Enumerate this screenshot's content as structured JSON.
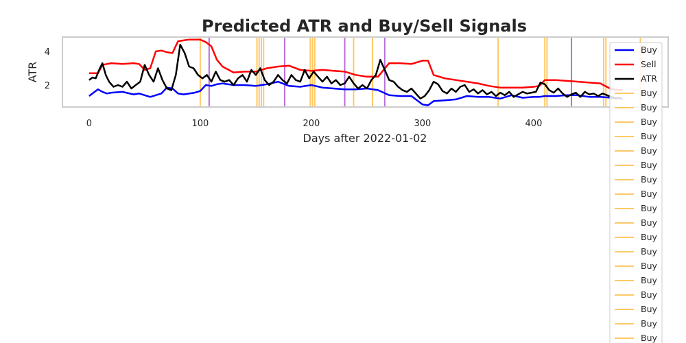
{
  "chart_data": {
    "type": "line",
    "title": "Predicted ATR and Buy/Sell Signals",
    "xlabel": "Days after 2022-01-02",
    "ylabel": "ATR",
    "xlim": [
      -24,
      521
    ],
    "ylim": [
      0.7,
      4.85
    ],
    "xticks": [
      0,
      100,
      200,
      300,
      400
    ],
    "yticks": [
      2,
      4
    ],
    "grid": false,
    "legend_position": "top-right",
    "series": [
      {
        "name": "Buy",
        "color": "#0000ff",
        "x": [
          0,
          8,
          12,
          16,
          20,
          30,
          40,
          45,
          50,
          55,
          60,
          65,
          70,
          75,
          80,
          85,
          95,
          100,
          105,
          110,
          115,
          120,
          130,
          140,
          150,
          160,
          170,
          180,
          190,
          200,
          210,
          220,
          230,
          240,
          250,
          260,
          270,
          280,
          290,
          300,
          305,
          310,
          320,
          330,
          340,
          350,
          360,
          370,
          380,
          390,
          400,
          405,
          410,
          420,
          430,
          440,
          450,
          460,
          470,
          480
        ],
        "y": [
          1.35,
          1.75,
          1.6,
          1.5,
          1.55,
          1.6,
          1.45,
          1.5,
          1.4,
          1.3,
          1.4,
          1.5,
          1.85,
          1.8,
          1.5,
          1.45,
          1.55,
          1.65,
          2.0,
          1.95,
          2.05,
          2.1,
          2.0,
          2.0,
          1.95,
          2.05,
          2.2,
          1.95,
          1.9,
          2.0,
          1.85,
          1.8,
          1.75,
          1.75,
          1.8,
          1.7,
          1.4,
          1.35,
          1.35,
          0.85,
          0.8,
          1.05,
          1.1,
          1.15,
          1.35,
          1.3,
          1.3,
          1.2,
          1.4,
          1.25,
          1.3,
          1.3,
          1.35,
          1.35,
          1.4,
          1.4,
          1.3,
          1.3,
          1.25,
          1.2
        ]
      },
      {
        "name": "Sell",
        "color": "#ff0000",
        "x": [
          0,
          8,
          12,
          16,
          20,
          30,
          40,
          45,
          50,
          55,
          60,
          65,
          70,
          75,
          80,
          85,
          90,
          95,
          100,
          105,
          110,
          115,
          120,
          130,
          140,
          150,
          160,
          170,
          180,
          190,
          200,
          210,
          220,
          230,
          240,
          250,
          260,
          270,
          280,
          290,
          300,
          305,
          310,
          320,
          330,
          340,
          350,
          360,
          370,
          380,
          390,
          400,
          405,
          410,
          420,
          430,
          440,
          450,
          460,
          470,
          480
        ],
        "y": [
          2.7,
          2.7,
          3.2,
          3.25,
          3.3,
          3.25,
          3.3,
          3.25,
          2.9,
          3.0,
          4.0,
          4.05,
          3.95,
          3.9,
          4.6,
          4.65,
          4.7,
          4.7,
          4.7,
          4.55,
          4.3,
          3.5,
          3.1,
          2.75,
          2.8,
          2.8,
          3.0,
          3.1,
          3.15,
          2.9,
          2.85,
          2.9,
          2.85,
          2.8,
          2.6,
          2.5,
          2.5,
          3.3,
          3.3,
          3.25,
          3.45,
          3.45,
          2.6,
          2.4,
          2.3,
          2.2,
          2.1,
          1.95,
          1.85,
          1.85,
          1.85,
          1.9,
          1.95,
          2.3,
          2.3,
          2.25,
          2.2,
          2.15,
          2.1,
          1.75,
          1.7
        ]
      },
      {
        "name": "ATR",
        "color": "#000000",
        "x": [
          0,
          3,
          6,
          9,
          12,
          15,
          18,
          22,
          26,
          30,
          34,
          38,
          42,
          46,
          50,
          54,
          58,
          62,
          66,
          70,
          74,
          78,
          82,
          86,
          90,
          94,
          98,
          102,
          106,
          110,
          114,
          118,
          122,
          126,
          130,
          134,
          138,
          142,
          146,
          150,
          154,
          158,
          162,
          166,
          170,
          174,
          178,
          182,
          186,
          190,
          194,
          198,
          202,
          206,
          210,
          214,
          218,
          222,
          226,
          230,
          234,
          238,
          242,
          246,
          250,
          254,
          258,
          262,
          266,
          270,
          274,
          278,
          282,
          286,
          290,
          294,
          298,
          302,
          306,
          310,
          314,
          318,
          322,
          326,
          330,
          334,
          338,
          342,
          346,
          350,
          354,
          358,
          362,
          366,
          370,
          374,
          378,
          382,
          386,
          390,
          394,
          398,
          402,
          406,
          410,
          414,
          418,
          422,
          426,
          430,
          434,
          438,
          442,
          446,
          450,
          454,
          458,
          462,
          466,
          470,
          474,
          478
        ],
        "y": [
          2.3,
          2.45,
          2.4,
          2.9,
          3.3,
          2.6,
          2.2,
          1.9,
          2.0,
          1.9,
          2.2,
          1.8,
          2.0,
          2.2,
          3.2,
          2.6,
          2.2,
          3.0,
          2.3,
          1.8,
          1.7,
          2.6,
          4.4,
          3.9,
          3.1,
          3.0,
          2.6,
          2.4,
          2.6,
          2.2,
          2.8,
          2.3,
          2.2,
          2.3,
          2.0,
          2.4,
          2.6,
          2.2,
          2.9,
          2.6,
          3.0,
          2.3,
          2.0,
          2.2,
          2.6,
          2.3,
          2.1,
          2.6,
          2.3,
          2.2,
          2.9,
          2.4,
          2.8,
          2.5,
          2.2,
          2.5,
          2.1,
          2.3,
          2.0,
          2.1,
          2.5,
          2.1,
          1.8,
          2.0,
          1.8,
          2.3,
          2.6,
          3.5,
          2.9,
          2.3,
          2.2,
          1.9,
          1.7,
          1.6,
          1.8,
          1.5,
          1.2,
          1.35,
          1.7,
          2.2,
          2.05,
          1.65,
          1.5,
          1.8,
          1.6,
          1.9,
          2.0,
          1.6,
          1.75,
          1.5,
          1.7,
          1.45,
          1.6,
          1.35,
          1.55,
          1.4,
          1.6,
          1.3,
          1.45,
          1.6,
          1.5,
          1.55,
          1.6,
          2.15,
          2.05,
          1.7,
          1.55,
          1.8,
          1.5,
          1.3,
          1.45,
          1.55,
          1.3,
          1.6,
          1.45,
          1.5,
          1.35,
          1.5,
          1.4,
          1.3,
          1.2,
          1.25
        ]
      }
    ],
    "signals": {
      "buy_color": "#ffa500",
      "sell_color": "#9932cc",
      "buy_x": [
        100,
        151,
        153,
        155,
        157,
        199,
        201,
        203,
        238,
        255,
        368,
        410,
        412,
        463,
        465,
        496
      ],
      "sell_x": [
        108,
        176,
        230,
        266,
        434
      ]
    },
    "legend": {
      "entries": [
        "Buy",
        "Sell",
        "ATR",
        "Buy",
        "Buy",
        "Buy",
        "Buy",
        "Buy",
        "Buy",
        "Buy",
        "Buy",
        "Buy",
        "Buy",
        "Buy",
        "Buy",
        "Buy",
        "Buy",
        "Buy",
        "Buy",
        "Buy",
        "Buy"
      ],
      "colors": [
        "#0000ff",
        "#ff0000",
        "#000000",
        "#ffa500",
        "#ffa500",
        "#ffa500",
        "#ffa500",
        "#ffa500",
        "#ffa500",
        "#ffa500",
        "#ffa500",
        "#ffa500",
        "#ffa500",
        "#ffa500",
        "#ffa500",
        "#ffa500",
        "#ffa500",
        "#ffa500",
        "#ffa500",
        "#ffa500",
        "#ffa500"
      ]
    }
  }
}
